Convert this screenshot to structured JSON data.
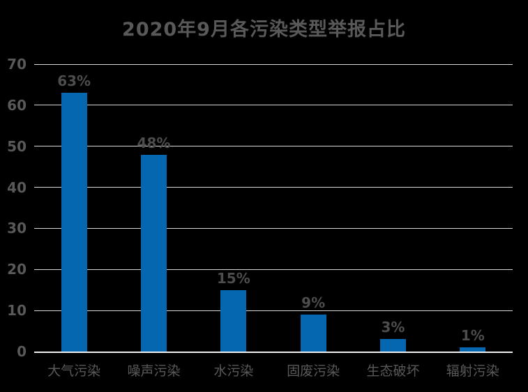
{
  "chart_data": {
    "type": "bar",
    "title": "2020年9月各污染类型举报占比",
    "categories": [
      "大气污染",
      "噪声污染",
      "水污染",
      "固废污染",
      "生态破坏",
      "辐射污染"
    ],
    "values": [
      63,
      48,
      15,
      9,
      3,
      1
    ],
    "data_labels": [
      "63%",
      "48%",
      "15%",
      "9%",
      "3%",
      "1%"
    ],
    "xlabel": "",
    "ylabel": "",
    "ylim": [
      0,
      70
    ],
    "yticks": [
      0,
      10,
      20,
      30,
      40,
      50,
      60,
      70
    ],
    "grid": true,
    "legend": false
  },
  "colors": {
    "background": "#000000",
    "bar": "#0667b1",
    "title_text": "#595959",
    "axis_text": "#595959",
    "data_label_text": "#4d4d4d",
    "gridline": "#d9d9d9",
    "axis_line": "#f0f0f0"
  }
}
